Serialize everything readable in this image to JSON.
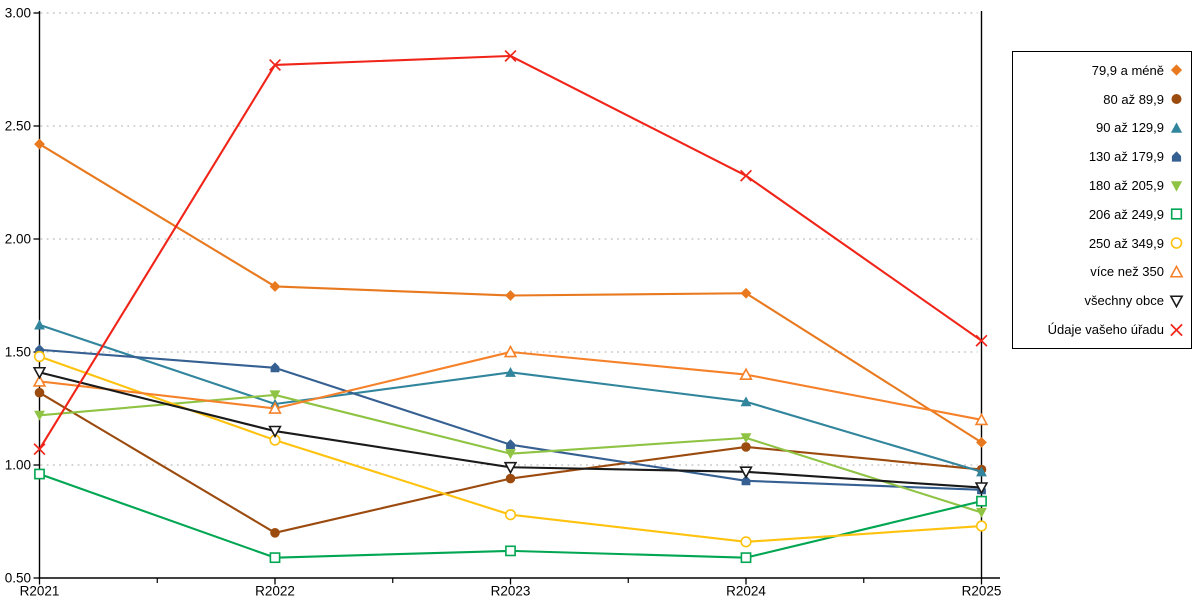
{
  "chart_data": {
    "type": "line",
    "title": "",
    "xlabel": "",
    "ylabel": "",
    "x": [
      "R2021",
      "R2022",
      "R2023",
      "R2024",
      "R2025"
    ],
    "ylim": [
      0.5,
      3.0
    ],
    "yticks": [
      "3.00",
      "2.50",
      "2.00",
      "1.50",
      "1.00",
      "0.50"
    ],
    "grid": "horizontal-dotted",
    "legend_position": "right",
    "axis_color": "#000000",
    "grid_color": "#ababab",
    "series": [
      {
        "name": "79,9 a méně",
        "marker": "diamond",
        "style": "filled",
        "color": "#E8791F",
        "values": [
          2.42,
          1.79,
          1.75,
          1.76,
          1.1
        ]
      },
      {
        "name": "80 až 89,9",
        "marker": "circle",
        "style": "filled",
        "color": "#9C4B0F",
        "values": [
          1.32,
          0.7,
          0.94,
          1.08,
          0.98
        ]
      },
      {
        "name": "90 až 129,9",
        "marker": "triangle-up",
        "style": "filled",
        "color": "#31859C",
        "values": [
          1.62,
          1.27,
          1.41,
          1.28,
          0.97
        ]
      },
      {
        "name": "130 až 179,9",
        "marker": "pentagon",
        "style": "filled",
        "color": "#366092",
        "values": [
          1.51,
          1.43,
          1.09,
          0.93,
          0.89
        ]
      },
      {
        "name": "180 až 205,9",
        "marker": "triangle-down",
        "style": "filled",
        "color": "#8FC344",
        "values": [
          1.22,
          1.31,
          1.05,
          1.12,
          0.79
        ]
      },
      {
        "name": "206 až 249,9",
        "marker": "square",
        "style": "open",
        "color": "#00A651",
        "values": [
          0.96,
          0.59,
          0.62,
          0.59,
          0.84
        ]
      },
      {
        "name": "250 až 349,9",
        "marker": "circle",
        "style": "open",
        "color": "#FFC20E",
        "values": [
          1.48,
          1.11,
          0.78,
          0.66,
          0.73
        ]
      },
      {
        "name": "více než 350",
        "marker": "triangle-up",
        "style": "open",
        "color": "#F5822A",
        "values": [
          1.37,
          1.25,
          1.5,
          1.4,
          1.2
        ]
      },
      {
        "name": "všechny obce",
        "marker": "triangle-down",
        "style": "open",
        "color": "#1A1A1A",
        "values": [
          1.41,
          1.15,
          0.99,
          0.97,
          0.9
        ]
      },
      {
        "name": "Údaje vašeho úřadu",
        "marker": "x",
        "style": "open",
        "color": "#F02418",
        "values": [
          1.07,
          2.77,
          2.81,
          2.28,
          1.55
        ]
      }
    ]
  }
}
